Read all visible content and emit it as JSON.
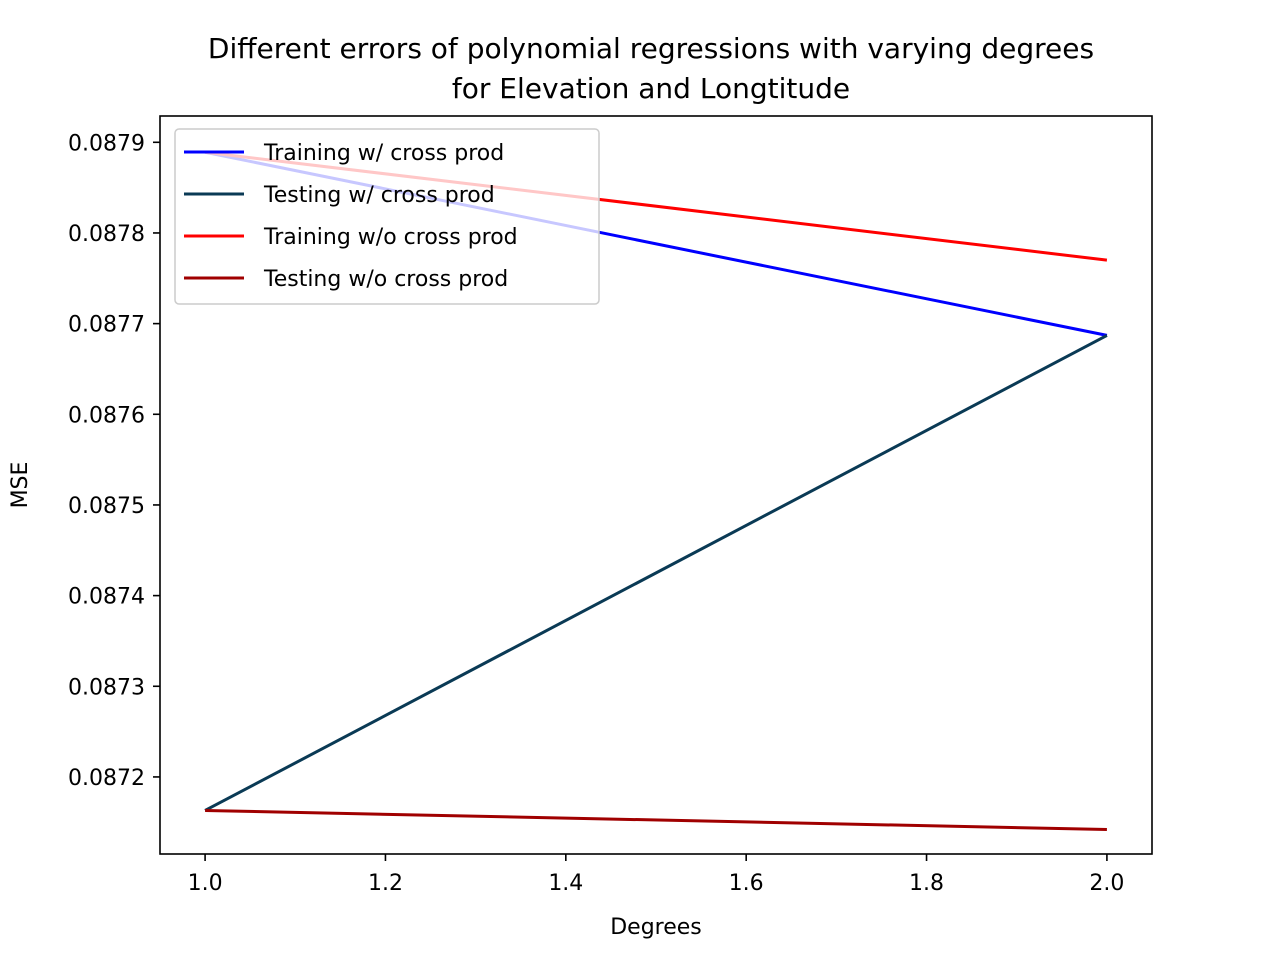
{
  "chart_data": {
    "type": "line",
    "title": [
      "Different errors of polynomial regressions with varying degrees",
      "for Elevation and Longtitude"
    ],
    "xlabel": "Degrees",
    "ylabel": "MSE",
    "xlim": [
      0.95,
      2.05
    ],
    "ylim": [
      0.087115,
      0.087929
    ],
    "xticks": [
      1.0,
      1.2,
      1.4,
      1.6,
      1.8,
      2.0
    ],
    "xtick_labels": [
      "1.0",
      "1.2",
      "1.4",
      "1.6",
      "1.8",
      "2.0"
    ],
    "yticks": [
      0.0872,
      0.0873,
      0.0874,
      0.0875,
      0.0876,
      0.0877,
      0.0878,
      0.0879
    ],
    "ytick_labels": [
      "0.0872",
      "0.0873",
      "0.0874",
      "0.0875",
      "0.0876",
      "0.0877",
      "0.0878",
      "0.0879"
    ],
    "grid": false,
    "legend_position": "top-left",
    "series": [
      {
        "name": "Training w/ cross prod",
        "color": "#0000ff",
        "x": [
          1,
          2
        ],
        "y": [
          0.087889,
          0.087687
        ]
      },
      {
        "name": "Testing w/ cross prod",
        "color": "#0a3a55",
        "x": [
          1,
          2
        ],
        "y": [
          0.087163,
          0.087687
        ]
      },
      {
        "name": "Training w/o cross prod",
        "color": "#ff0000",
        "x": [
          1,
          2
        ],
        "y": [
          0.087889,
          0.08777
        ]
      },
      {
        "name": "Testing w/o cross prod",
        "color": "#a00000",
        "x": [
          1,
          2
        ],
        "y": [
          0.087163,
          0.087142
        ]
      }
    ]
  }
}
